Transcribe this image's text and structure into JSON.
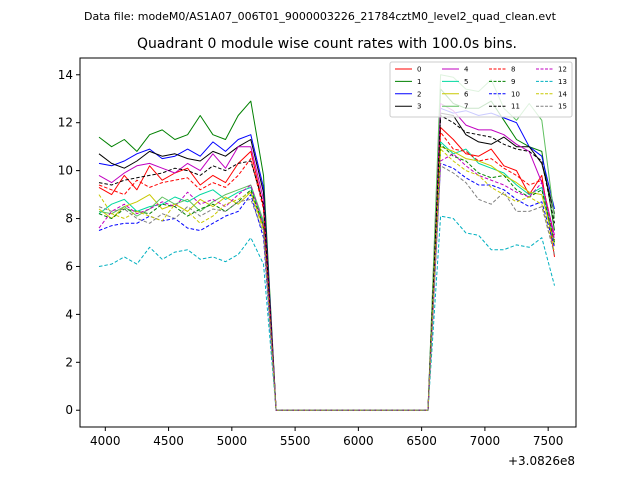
{
  "header": {
    "data_file": "Data file: modeM0/AS1A07_006T01_9000003226_21784cztM0_level2_quad_clean.evt"
  },
  "chart_data": {
    "type": "line",
    "title": "Quadrant 0 module wise count rates with 100.0s bins.",
    "xlabel": "",
    "ylabel": "",
    "x_offset_label": "+3.0826e8",
    "xlim": [
      3800,
      7720
    ],
    "ylim": [
      -0.7,
      14.7
    ],
    "x_ticks": [
      4000,
      4500,
      5000,
      5500,
      6000,
      6500,
      7000,
      7500
    ],
    "y_ticks": [
      0,
      2,
      4,
      6,
      8,
      10,
      12,
      14
    ],
    "grid": false,
    "legend_position": "top-right",
    "x": [
      3950,
      4050,
      4150,
      4250,
      4350,
      4450,
      4550,
      4650,
      4750,
      4850,
      4950,
      5050,
      5150,
      5250,
      5350,
      5450,
      5550,
      5650,
      5750,
      5850,
      5950,
      6050,
      6150,
      6250,
      6350,
      6450,
      6550,
      6650,
      6750,
      6850,
      6950,
      7050,
      7150,
      7250,
      7350,
      7450,
      7550
    ],
    "series": [
      {
        "name": "0",
        "color": "#ff0000",
        "dash": "solid",
        "values": [
          9.3,
          9.0,
          9.8,
          9.2,
          10.2,
          9.6,
          9.9,
          10.1,
          9.4,
          9.8,
          9.5,
          10.3,
          10.8,
          8.5,
          0,
          0,
          0,
          0,
          0,
          0,
          0,
          0,
          0,
          0,
          0,
          0,
          0,
          11.8,
          11.3,
          10.7,
          10.6,
          10.9,
          10.2,
          10.0,
          9.0,
          9.8,
          6.4
        ]
      },
      {
        "name": "1",
        "color": "#008000",
        "dash": "solid",
        "values": [
          11.4,
          11.0,
          11.3,
          10.8,
          11.5,
          11.7,
          11.3,
          11.5,
          12.3,
          11.5,
          11.3,
          12.3,
          12.9,
          9.8,
          0,
          0,
          0,
          0,
          0,
          0,
          0,
          0,
          0,
          0,
          0,
          0,
          0,
          13.4,
          12.8,
          12.6,
          12.6,
          12.9,
          12.1,
          11.3,
          11.0,
          10.8,
          7.5
        ]
      },
      {
        "name": "2",
        "color": "#0000ff",
        "dash": "solid",
        "values": [
          10.3,
          10.2,
          10.4,
          10.7,
          10.9,
          10.5,
          10.6,
          10.9,
          10.6,
          11.2,
          10.8,
          11.3,
          11.5,
          9.3,
          0,
          0,
          0,
          0,
          0,
          0,
          0,
          0,
          0,
          0,
          0,
          0,
          0,
          12.6,
          12.4,
          12.5,
          12.3,
          12.4,
          12.2,
          12.0,
          11.0,
          10.6,
          8.4
        ]
      },
      {
        "name": "3",
        "color": "#000000",
        "dash": "solid",
        "values": [
          10.7,
          10.3,
          10.1,
          10.4,
          10.8,
          10.6,
          10.7,
          10.5,
          10.4,
          10.8,
          10.6,
          11.0,
          11.3,
          9.1,
          0,
          0,
          0,
          0,
          0,
          0,
          0,
          0,
          0,
          0,
          0,
          0,
          0,
          12.4,
          12.3,
          11.5,
          11.2,
          11.1,
          11.4,
          11.0,
          11.0,
          10.3,
          8.2
        ]
      },
      {
        "name": "4",
        "color": "#c000c0",
        "dash": "solid",
        "values": [
          9.8,
          9.5,
          9.9,
          10.2,
          10.3,
          10.1,
          9.9,
          10.3,
          10.0,
          10.7,
          10.1,
          11.0,
          11.0,
          8.8,
          0,
          0,
          0,
          0,
          0,
          0,
          0,
          0,
          0,
          0,
          0,
          0,
          0,
          12.8,
          12.5,
          11.9,
          11.7,
          11.7,
          11.5,
          11.1,
          10.8,
          9.5,
          7.3
        ]
      },
      {
        "name": "5",
        "color": "#00d8a0",
        "dash": "solid",
        "values": [
          8.2,
          8.6,
          8.8,
          8.3,
          8.5,
          8.6,
          8.9,
          8.7,
          9.0,
          9.2,
          8.8,
          9.1,
          9.3,
          7.8,
          0,
          0,
          0,
          0,
          0,
          0,
          0,
          0,
          0,
          0,
          0,
          0,
          0,
          11.2,
          10.7,
          10.9,
          10.3,
          10.1,
          9.9,
          9.4,
          9.0,
          9.3,
          7.0
        ]
      },
      {
        "name": "6",
        "color": "#c8c800",
        "dash": "solid",
        "values": [
          8.4,
          8.0,
          8.5,
          8.7,
          9.0,
          8.4,
          8.6,
          8.3,
          8.8,
          8.5,
          8.9,
          8.6,
          9.1,
          7.6,
          0,
          0,
          0,
          0,
          0,
          0,
          0,
          0,
          0,
          0,
          0,
          0,
          0,
          11.0,
          10.8,
          10.5,
          10.4,
          10.2,
          9.8,
          9.5,
          9.1,
          9.0,
          6.9
        ]
      },
      {
        "name": "7",
        "color": "#60c060",
        "dash": "solid",
        "values": [
          8.3,
          8.2,
          8.5,
          8.1,
          8.4,
          8.9,
          8.6,
          8.8,
          8.3,
          8.7,
          9.0,
          9.2,
          9.4,
          7.9,
          0,
          0,
          0,
          0,
          0,
          0,
          0,
          0,
          0,
          0,
          0,
          0,
          0,
          14.0,
          13.9,
          13.4,
          13.3,
          13.8,
          12.6,
          12.1,
          12.8,
          12.1,
          8.0
        ]
      },
      {
        "name": "8",
        "color": "#ff0000",
        "dash": "dashed",
        "values": [
          9.4,
          9.2,
          9.0,
          9.6,
          9.3,
          9.5,
          9.6,
          9.7,
          9.2,
          9.5,
          9.3,
          9.8,
          10.5,
          8.4,
          0,
          0,
          0,
          0,
          0,
          0,
          0,
          0,
          0,
          0,
          0,
          0,
          0,
          11.6,
          10.9,
          10.8,
          10.4,
          10.5,
          10.1,
          9.8,
          9.4,
          9.6,
          7.1
        ]
      },
      {
        "name": "9",
        "color": "#008000",
        "dash": "dashed",
        "values": [
          8.2,
          8.0,
          8.4,
          8.3,
          8.2,
          8.6,
          8.5,
          8.1,
          8.4,
          8.6,
          8.3,
          8.7,
          9.2,
          7.7,
          0,
          0,
          0,
          0,
          0,
          0,
          0,
          0,
          0,
          0,
          0,
          0,
          0,
          11.1,
          10.6,
          10.4,
          9.9,
          9.7,
          9.8,
          9.2,
          8.9,
          9.2,
          7.0
        ]
      },
      {
        "name": "10",
        "color": "#0000ff",
        "dash": "dashed",
        "values": [
          7.5,
          7.7,
          7.8,
          7.8,
          8.1,
          7.9,
          8.0,
          7.6,
          7.5,
          7.8,
          8.1,
          8.3,
          9.0,
          7.2,
          0,
          0,
          0,
          0,
          0,
          0,
          0,
          0,
          0,
          0,
          0,
          0,
          0,
          10.3,
          10.1,
          9.7,
          9.4,
          9.4,
          9.2,
          8.8,
          8.5,
          8.7,
          6.8
        ]
      },
      {
        "name": "11",
        "color": "#000000",
        "dash": "dashed",
        "values": [
          9.5,
          9.4,
          9.6,
          9.7,
          9.8,
          9.9,
          10.1,
          10.0,
          9.8,
          10.2,
          10.0,
          10.3,
          10.4,
          8.6,
          0,
          0,
          0,
          0,
          0,
          0,
          0,
          0,
          0,
          0,
          0,
          0,
          0,
          12.3,
          12.0,
          11.6,
          11.5,
          11.4,
          11.1,
          10.9,
          10.8,
          10.4,
          7.8
        ]
      },
      {
        "name": "12",
        "color": "#c000c0",
        "dash": "dashed",
        "values": [
          7.6,
          8.3,
          8.6,
          8.2,
          8.4,
          8.7,
          8.5,
          9.1,
          8.6,
          8.8,
          8.5,
          9.0,
          9.4,
          7.7,
          0,
          0,
          0,
          0,
          0,
          0,
          0,
          0,
          0,
          0,
          0,
          0,
          0,
          10.4,
          10.7,
          10.2,
          9.8,
          9.6,
          9.4,
          9.1,
          8.9,
          9.5,
          7.1
        ]
      },
      {
        "name": "13",
        "color": "#00b0c0",
        "dash": "dashed",
        "values": [
          6.0,
          6.1,
          6.4,
          6.1,
          6.8,
          6.3,
          6.6,
          6.7,
          6.3,
          6.4,
          6.2,
          6.5,
          7.2,
          6.1,
          0,
          0,
          0,
          0,
          0,
          0,
          0,
          0,
          0,
          0,
          0,
          0,
          0,
          8.1,
          8.0,
          7.4,
          7.3,
          6.7,
          6.7,
          6.9,
          6.8,
          7.2,
          5.2
        ]
      },
      {
        "name": "14",
        "color": "#c8c800",
        "dash": "dashed",
        "values": [
          9.0,
          8.2,
          8.0,
          8.3,
          8.1,
          7.9,
          8.6,
          8.3,
          7.8,
          8.1,
          8.6,
          8.8,
          9.1,
          7.5,
          0,
          0,
          0,
          0,
          0,
          0,
          0,
          0,
          0,
          0,
          0,
          0,
          0,
          10.9,
          10.4,
          10.0,
          9.8,
          9.3,
          9.0,
          8.7,
          8.9,
          8.6,
          6.6
        ]
      },
      {
        "name": "15",
        "color": "#808080",
        "dash": "dashed",
        "values": [
          8.5,
          8.3,
          8.4,
          8.0,
          7.8,
          8.2,
          8.0,
          8.5,
          8.1,
          8.4,
          8.3,
          8.7,
          8.8,
          7.4,
          0,
          0,
          0,
          0,
          0,
          0,
          0,
          0,
          0,
          0,
          0,
          0,
          0,
          10.2,
          9.9,
          9.5,
          8.8,
          8.6,
          9.1,
          8.3,
          8.3,
          8.5,
          6.5
        ]
      }
    ]
  }
}
